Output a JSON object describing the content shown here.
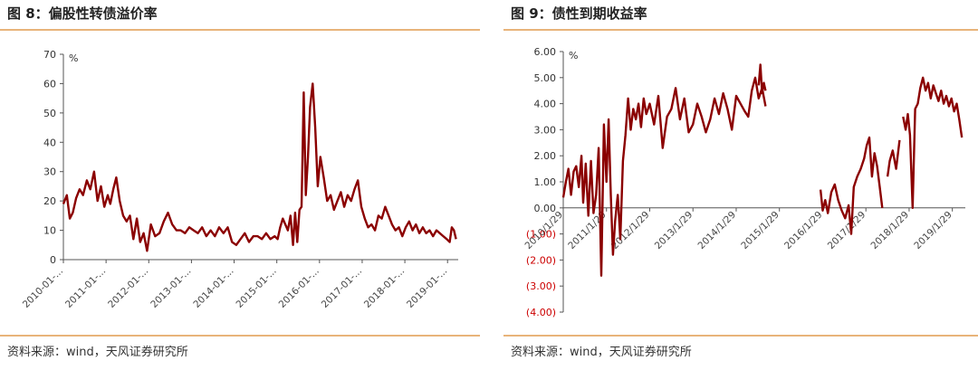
{
  "colors": {
    "line": "#8B0000",
    "rule": "#E8B47A",
    "axis": "#555555",
    "negative_tick": "#CC0000"
  },
  "chart_data": [
    {
      "type": "line",
      "title": "图 8：偏股性转债溢价率",
      "source": "资料来源：wind，天风证券研究所",
      "ylabel": "%",
      "ylim": [
        0,
        70
      ],
      "y_ticks": [
        "0",
        "10",
        "20",
        "30",
        "40",
        "50",
        "60",
        "70"
      ],
      "x_ticks": [
        "2010-01-...",
        "2011-01-...",
        "2012-01-...",
        "2013-01-...",
        "2014-01-...",
        "2015-01-...",
        "2016-01-...",
        "2017-01-...",
        "2018-01-...",
        "2019-01-..."
      ],
      "xlim": [
        2010.0,
        2019.25
      ],
      "grid": false,
      "series": [
        {
          "x": [
            2010.0,
            2010.08,
            2010.15,
            2010.22,
            2010.3,
            2010.38,
            2010.46,
            2010.55,
            2010.63,
            2010.72,
            2010.8,
            2010.88,
            2010.96,
            2011.04,
            2011.1,
            2011.17,
            2011.24,
            2011.32,
            2011.4,
            2011.48,
            2011.56,
            2011.64,
            2011.72,
            2011.8,
            2011.88,
            2011.96,
            2012.05,
            2012.15,
            2012.25,
            2012.35,
            2012.45,
            2012.55,
            2012.65,
            2012.75,
            2012.85,
            2012.95,
            2013.05,
            2013.15,
            2013.25,
            2013.35,
            2013.45,
            2013.55,
            2013.65,
            2013.75,
            2013.85,
            2013.95,
            2014.05,
            2014.15,
            2014.25,
            2014.35,
            2014.45,
            2014.55,
            2014.65,
            2014.75,
            2014.85,
            2014.95,
            2015.02,
            2015.08,
            2015.14,
            2015.2,
            2015.26,
            2015.32,
            2015.38,
            2015.43,
            2015.48,
            2015.53,
            2015.58,
            2015.63,
            2015.68,
            2015.73,
            2015.78,
            2015.84,
            2015.9,
            2015.96,
            2016.02,
            2016.1,
            2016.18,
            2016.26,
            2016.34,
            2016.42,
            2016.5,
            2016.58,
            2016.66,
            2016.74,
            2016.82,
            2016.9,
            2016.98,
            2017.06,
            2017.14,
            2017.22,
            2017.3,
            2017.38,
            2017.46,
            2017.54,
            2017.62,
            2017.7,
            2017.78,
            2017.86,
            2017.94,
            2018.02,
            2018.1,
            2018.18,
            2018.26,
            2018.34,
            2018.42,
            2018.5,
            2018.58,
            2018.66,
            2018.74,
            2018.82,
            2018.9,
            2018.98,
            2019.05,
            2019.1,
            2019.15,
            2019.2
          ],
          "y": [
            19,
            22,
            14,
            16,
            21,
            24,
            22,
            27,
            24,
            30,
            20,
            25,
            18,
            22,
            19,
            24,
            28,
            20,
            15,
            13,
            15,
            7,
            14,
            6,
            9,
            3,
            12,
            8,
            9,
            13,
            16,
            12,
            10,
            10,
            9,
            11,
            10,
            9,
            11,
            8,
            10,
            8,
            11,
            9,
            11,
            6,
            5,
            7,
            9,
            6,
            8,
            8,
            7,
            9,
            7,
            8,
            7,
            11,
            14,
            12,
            10,
            15,
            5,
            16,
            6,
            17,
            18,
            57,
            22,
            35,
            52,
            60,
            45,
            25,
            35,
            28,
            20,
            22,
            17,
            20,
            23,
            18,
            22,
            20,
            24,
            27,
            18,
            14,
            11,
            12,
            10,
            15,
            14,
            18,
            15,
            12,
            10,
            11,
            8,
            11,
            13,
            10,
            12,
            9,
            11,
            9,
            10,
            8,
            10,
            9,
            8,
            7,
            6,
            11,
            10,
            7
          ]
        }
      ]
    },
    {
      "type": "line",
      "title": "图 9：债性到期收益率",
      "source": "资料来源：wind，天风证券研究所",
      "ylabel": "%",
      "ylim": [
        -4,
        6
      ],
      "y_ticks": [
        "6.00",
        "5.00",
        "4.00",
        "3.00",
        "2.00",
        "1.00",
        "0.00",
        "(1.00)",
        "(2.00)",
        "(3.00)",
        "(4.00)"
      ],
      "x_ticks": [
        "2010/1/29",
        "2011/1/29",
        "2012/1/29",
        "2013/1/29",
        "2014/1/29",
        "2015/1/29",
        "2016/1/29",
        "2017/1/29",
        "2018/1/29",
        "2019/1/29"
      ],
      "xlim": [
        2010.0,
        2019.3
      ],
      "grid": false,
      "series": [
        {
          "segments": [
            {
              "x": [
                2010.0,
                2010.06,
                2010.12,
                2010.18,
                2010.24,
                2010.3,
                2010.36,
                2010.42,
                2010.46,
                2010.52,
                2010.58,
                2010.64,
                2010.7,
                2010.76,
                2010.82,
                2010.88,
                2010.94,
                2011.0,
                2011.05,
                2011.1,
                2011.15,
                2011.2,
                2011.26,
                2011.32,
                2011.38,
                2011.44,
                2011.5,
                2011.56,
                2011.62,
                2011.68,
                2011.74,
                2011.8,
                2011.86,
                2011.92,
                2012.0,
                2012.1,
                2012.2,
                2012.3,
                2012.4,
                2012.5,
                2012.6,
                2012.7,
                2012.8,
                2012.9,
                2013.0,
                2013.1,
                2013.2,
                2013.3,
                2013.4,
                2013.5,
                2013.6,
                2013.7,
                2013.8,
                2013.9,
                2014.0,
                2014.1,
                2014.2,
                2014.28,
                2014.36,
                2014.44,
                2014.52,
                2014.6,
                2014.68
              ],
              "y": [
                0.4,
                1.0,
                1.5,
                0.5,
                1.4,
                1.6,
                0.8,
                2.0,
                0.2,
                1.7,
                -0.3,
                1.8,
                -0.2,
                0.5,
                2.3,
                -2.6,
                3.2,
                1.0,
                3.4,
                0.5,
                -1.8,
                -0.5,
                0.5,
                -1.2,
                1.8,
                2.8,
                4.2,
                3.0,
                3.8,
                3.4,
                4.0,
                3.1,
                4.2,
                3.6,
                4.0,
                3.2,
                4.3,
                2.3,
                3.5,
                3.8,
                4.6,
                3.4,
                4.2,
                2.9,
                3.2,
                4.0,
                3.5,
                2.9,
                3.4,
                4.2,
                3.6,
                4.4,
                3.8,
                3.0,
                4.3,
                4.0,
                3.7,
                3.5,
                4.5,
                5.0,
                4.2,
                4.6,
                3.9
              ]
            },
            {
              "x": [
                2014.52,
                2014.56,
                2014.6,
                2014.64,
                2014.68
              ],
              "y": [
                4.7,
                5.5,
                4.4,
                4.8,
                4.5
              ]
            },
            {
              "x": [
                2015.95,
                2016.0,
                2016.06,
                2016.12,
                2016.2,
                2016.28,
                2016.36,
                2016.44,
                2016.52,
                2016.6,
                2016.66,
                2016.72,
                2016.8,
                2016.88,
                2016.96,
                2017.02,
                2017.08,
                2017.14,
                2017.2,
                2017.26,
                2017.32,
                2017.38
              ],
              "y": [
                0.7,
                -0.1,
                0.3,
                -0.2,
                0.6,
                0.9,
                0.3,
                -0.1,
                -0.4,
                0.1,
                -1.0,
                0.8,
                1.2,
                1.5,
                1.9,
                2.4,
                2.7,
                1.2,
                2.1,
                1.6,
                0.8,
                0.0
              ]
            },
            {
              "x": [
                2017.5,
                2017.55,
                2017.62,
                2017.7,
                2017.78
              ],
              "y": [
                1.2,
                1.8,
                2.2,
                1.5,
                2.6
              ]
            },
            {
              "x": [
                2017.86,
                2017.92,
                2017.97,
                2018.02,
                2018.08,
                2018.14,
                2018.2,
                2018.26,
                2018.32,
                2018.38,
                2018.44,
                2018.5,
                2018.56,
                2018.62,
                2018.68,
                2018.74,
                2018.8,
                2018.86,
                2018.92,
                2018.98,
                2019.04,
                2019.1,
                2019.16,
                2019.22
              ],
              "y": [
                3.5,
                3.0,
                3.6,
                2.8,
                0.0,
                3.8,
                4.0,
                4.6,
                5.0,
                4.5,
                4.8,
                4.2,
                4.7,
                4.4,
                4.1,
                4.5,
                4.0,
                4.3,
                3.9,
                4.2,
                3.7,
                4.0,
                3.4,
                2.7
              ]
            }
          ]
        }
      ]
    }
  ]
}
